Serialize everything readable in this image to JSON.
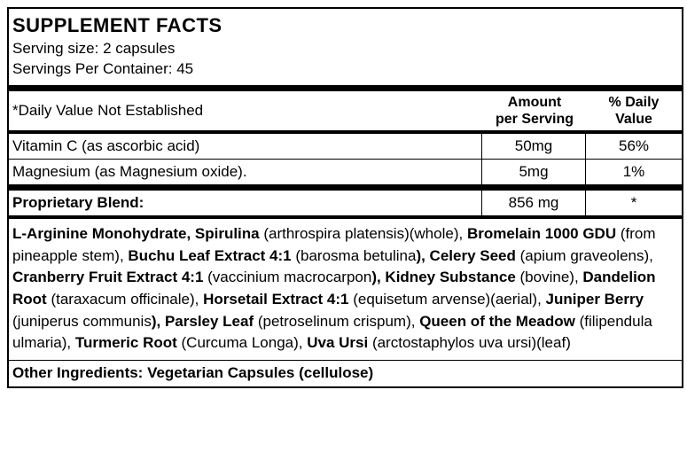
{
  "colors": {
    "text": "#000000",
    "background": "#ffffff",
    "rule": "#000000"
  },
  "header": {
    "title": "SUPPLEMENT FACTS",
    "serving_size_label": "Serving size:",
    "serving_size_value": "2 capsules",
    "servings_per_container_label": "Servings Per Container:",
    "servings_per_container_value": "45"
  },
  "columns": {
    "note": "*Daily Value Not Established",
    "amount_header_line1": "Amount",
    "amount_header_line2": "per Serving",
    "dv_header_line1": "% Daily",
    "dv_header_line2": "Value"
  },
  "rows": [
    {
      "name": "Vitamin C (as ascorbic acid)",
      "amount": "50mg",
      "dv": "56%"
    },
    {
      "name": "Magnesium (as Magnesium oxide).",
      "amount": "5mg",
      "dv": "1%"
    }
  ],
  "proprietary": {
    "label": "Proprietary Blend:",
    "amount": "856 mg",
    "dv": "*",
    "ingredients": [
      {
        "b": "L-Arginine Monohydrate,  Spirulina",
        "r": " (arthrospira platensis)(whole), "
      },
      {
        "b": "Bromelain 1000 GDU",
        "r": " (from pineapple stem),  "
      },
      {
        "b": "Buchu Leaf Extract 4:1",
        "r": " (barosma betulina"
      },
      {
        "b": "), Celery Seed",
        "r": " (apium graveolens), "
      },
      {
        "b": "Cranberry Fruit Extract 4:1",
        "r": " (vaccinium macrocarpon"
      },
      {
        "b": "), Kidney Substance",
        "r": " (bovine), "
      },
      {
        "b": "Dandelion Root",
        "r": " (taraxacum officinale), "
      },
      {
        "b": "Horsetail Extract 4:1",
        "r": " (equisetum arvense)(aerial), "
      },
      {
        "b": "Juniper Berry",
        "r": " (juniperus communis"
      },
      {
        "b": "), Parsley Leaf",
        "r": " (petroselinum crispum), "
      },
      {
        "b": "Queen of the Meadow",
        "r": " (filipendula ulmaria), "
      },
      {
        "b": "Turmeric Root",
        "r": " (Curcuma Longa), "
      },
      {
        "b": "Uva Ursi",
        "r": " (arctostaphylos uva ursi)(leaf)"
      }
    ]
  },
  "other": {
    "label": "Other Ingredients: Vegetarian Capsules (cellulose)"
  }
}
